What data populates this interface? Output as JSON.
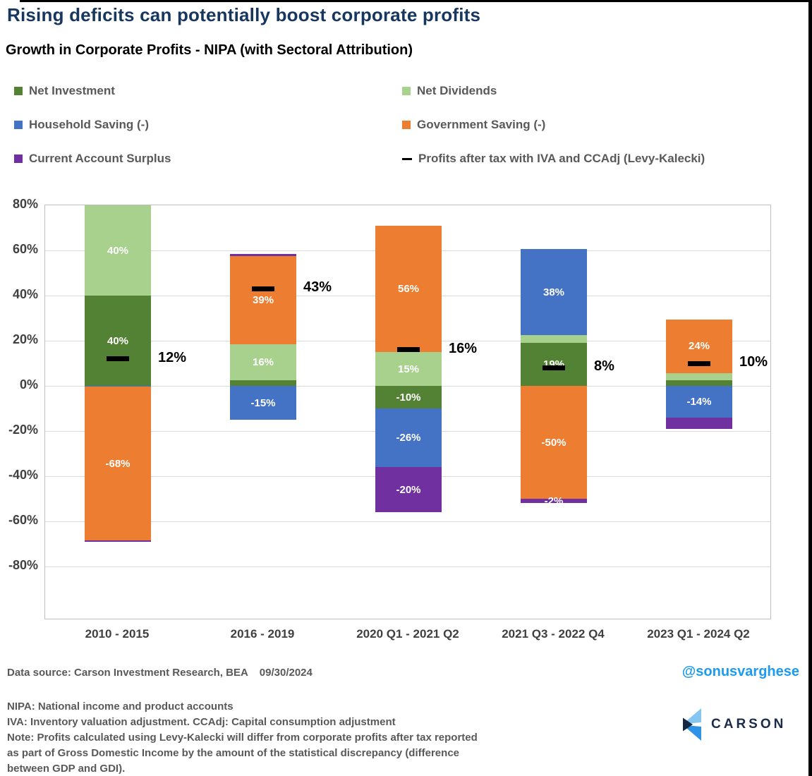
{
  "header": {
    "title": "Rising deficits can potentially boost corporate profits",
    "subtitle": "Growth in Corporate Profits - NIPA (with Sectoral Attribution)"
  },
  "legend": {
    "items": [
      {
        "label": "Net Investment",
        "color": "#548235",
        "marker": "square"
      },
      {
        "label": "Net Dividends",
        "color": "#A9D18E",
        "marker": "square"
      },
      {
        "label": "Household Saving (-)",
        "color": "#4472C4",
        "marker": "square"
      },
      {
        "label": "Government Saving (-)",
        "color": "#ED7D31",
        "marker": "square"
      },
      {
        "label": "Current Account Surplus",
        "color": "#7030A0",
        "marker": "square"
      },
      {
        "label": "Profits after tax with IVA and CCAdj (Levy-Kalecki)",
        "color": "#000000",
        "marker": "dash"
      }
    ]
  },
  "chart_data": {
    "type": "bar",
    "subtype": "stacked-with-total-markers",
    "title": "Growth in Corporate Profits - NIPA (with Sectoral Attribution)",
    "xlabel": "",
    "ylabel": "",
    "ylim": [
      -80,
      80
    ],
    "grid": true,
    "legend_position": "top",
    "marker_series": "Profits after tax with IVA and CCAdj (Levy-Kalecki)",
    "y_axis": {
      "ticks": [
        {
          "label": "80%",
          "value": 80
        },
        {
          "label": "60%",
          "value": 60
        },
        {
          "label": "40%",
          "value": 40
        },
        {
          "label": "20%",
          "value": 20
        },
        {
          "label": "0%",
          "value": 0
        },
        {
          "label": "-20%",
          "value": -20
        },
        {
          "label": "-40%",
          "value": -40
        },
        {
          "label": "-60%",
          "value": -60
        },
        {
          "label": "-80%",
          "value": -80
        }
      ]
    },
    "series": [
      {
        "name": "Net Investment",
        "color": "#548235"
      },
      {
        "name": "Net Dividends",
        "color": "#A9D18E"
      },
      {
        "name": "Household Saving (-)",
        "color": "#4472C4"
      },
      {
        "name": "Government Saving (-)",
        "color": "#ED7D31"
      },
      {
        "name": "Current Account Surplus",
        "color": "#7030A0"
      }
    ],
    "categories": [
      "2010 - 2015",
      "2016 - 2019",
      "2020 Q1 - 2021 Q2",
      "2021 Q3 - 2022 Q4",
      "2023 Q1 - 2024 Q2"
    ],
    "bars": [
      {
        "category": "2010 - 2015",
        "marker_value": 12,
        "marker_label": "12%",
        "segments": [
          {
            "series": "Net Investment",
            "value": 40,
            "label": "40%"
          },
          {
            "series": "Net Dividends",
            "value": 40,
            "label": "40%"
          },
          {
            "series": "Household Saving (-)",
            "value": -0.4,
            "label": null
          },
          {
            "series": "Government Saving (-)",
            "value": -68,
            "label": "-68%"
          },
          {
            "series": "Current Account Surplus",
            "value": -0.7,
            "label": null
          }
        ]
      },
      {
        "category": "2016 - 2019",
        "marker_value": 43,
        "marker_label": "43%",
        "segments": [
          {
            "series": "Net Investment",
            "value": 2.5,
            "label": null
          },
          {
            "series": "Net Dividends",
            "value": 16,
            "label": "16%"
          },
          {
            "series": "Household Saving (-)",
            "value": -15,
            "label": "-15%"
          },
          {
            "series": "Government Saving (-)",
            "value": 39,
            "label": "39%"
          },
          {
            "series": "Current Account Surplus",
            "value": 1,
            "label": null
          }
        ]
      },
      {
        "category": "2020 Q1 - 2021 Q2",
        "marker_value": 16,
        "marker_label": "16%",
        "segments": [
          {
            "series": "Net Investment",
            "value": -10,
            "label": "-10%"
          },
          {
            "series": "Net Dividends",
            "value": 15,
            "label": "15%"
          },
          {
            "series": "Household Saving (-)",
            "value": -26,
            "label": "-26%"
          },
          {
            "series": "Government Saving (-)",
            "value": 56,
            "label": "56%"
          },
          {
            "series": "Current Account Surplus",
            "value": -20,
            "label": "-20%"
          }
        ]
      },
      {
        "category": "2021 Q3 - 2022 Q4",
        "marker_value": 8,
        "marker_label": "8%",
        "segments": [
          {
            "series": "Net Investment",
            "value": 19,
            "label": "19%"
          },
          {
            "series": "Net Dividends",
            "value": 3.5,
            "label": null
          },
          {
            "series": "Household Saving (-)",
            "value": 38,
            "label": "38%"
          },
          {
            "series": "Government Saving (-)",
            "value": -50,
            "label": "-50%"
          },
          {
            "series": "Current Account Surplus",
            "value": -2,
            "label": "-2%"
          }
        ]
      },
      {
        "category": "2023 Q1 - 2024 Q2",
        "marker_value": 10,
        "marker_label": "10%",
        "segments": [
          {
            "series": "Net Investment",
            "value": 2.5,
            "label": null
          },
          {
            "series": "Net Dividends",
            "value": 3,
            "label": null
          },
          {
            "series": "Household Saving (-)",
            "value": -14,
            "label": "-14%"
          },
          {
            "series": "Government Saving (-)",
            "value": 24,
            "label": "24%"
          },
          {
            "series": "Current Account Surplus",
            "value": -5,
            "label": null
          }
        ]
      }
    ]
  },
  "footer": {
    "source": "Data source: Carson Investment Research, BEA",
    "date": "09/30/2024",
    "handle": "@sonusvarghese",
    "logo_text": "CARSON",
    "notes": [
      "NIPA: National income and product accounts",
      "IVA: Inventory valuation adjustment. CCAdj: Capital consumption adjustment",
      "Note: Profits calculated using Levy-Kalecki will differ from corporate profits after tax reported",
      "as part of Gross Domestic Income by the amount of the statistical discrepancy (difference",
      "between GDP and GDI)."
    ]
  },
  "colors": {
    "title_navy": "#17375E",
    "legend_text_gray": "#595959",
    "axis_label_gray": "#404040",
    "gridline_gray": "#D9D9D9",
    "plot_border_gray": "#BFBFBF",
    "marker_black": "#000000",
    "handle_blue": "#1C9BF0",
    "logo_navy": "#1B2B4A",
    "logo_light_blue": "#85C6F0",
    "logo_blue": "#2E93E6"
  }
}
